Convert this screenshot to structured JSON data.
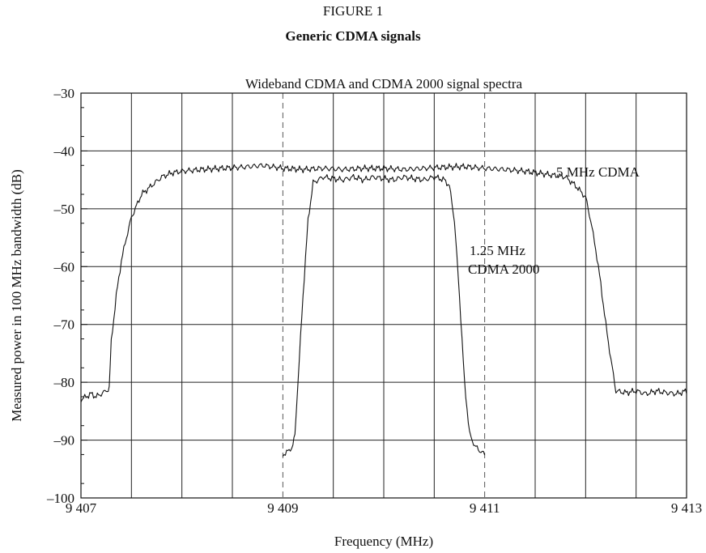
{
  "figure_label": "FIGURE 1",
  "figure_title": "Generic CDMA signals",
  "chart_data": {
    "type": "line",
    "title": "Wideband CDMA and CDMA 2000 signal spectra",
    "xlabel": "Frequency (MHz)",
    "ylabel": "Measured power in 100 MHz bandwidth (dB)",
    "xlim": [
      9407,
      9413
    ],
    "ylim": [
      -100,
      -30
    ],
    "xticks": [
      9407,
      9409,
      9411,
      9413
    ],
    "xtick_labels": [
      "9 407",
      "9 409",
      "9 411",
      "9 413"
    ],
    "yticks": [
      -30,
      -40,
      -50,
      -60,
      -70,
      -80,
      -90,
      -100
    ],
    "ytick_labels": [
      "–30",
      "–40",
      "–50",
      "–60",
      "–70",
      "–80",
      "–90",
      "–100"
    ],
    "x_grid_step": 0.5,
    "grid": true,
    "dashed_vlines": [
      9409,
      9411
    ],
    "series": [
      {
        "name": "5 MHz CDMA",
        "values_x": [
          9407.0,
          9407.05,
          9407.1,
          9407.15,
          9407.2,
          9407.25,
          9407.28,
          9407.3,
          9407.35,
          9407.4,
          9407.45,
          9407.5,
          9407.55,
          9407.6,
          9407.7,
          9407.8,
          9407.9,
          9408.0,
          9408.2,
          9408.4,
          9408.6,
          9408.8,
          9409.0,
          9409.2,
          9409.4,
          9409.6,
          9409.8,
          9410.0,
          9410.2,
          9410.4,
          9410.6,
          9410.8,
          9411.0,
          9411.2,
          9411.4,
          9411.6,
          9411.8,
          9411.9,
          9412.0,
          9412.05,
          9412.1,
          9412.15,
          9412.2,
          9412.25,
          9412.3,
          9412.4,
          9412.5,
          9412.6,
          9412.7,
          9412.8,
          9412.9,
          9413.0
        ],
        "values_y": [
          -83.0,
          -82.5,
          -82.0,
          -82.5,
          -82.0,
          -81.5,
          -81.0,
          -73.0,
          -65.0,
          -59.0,
          -55.0,
          -51.5,
          -49.5,
          -47.5,
          -46.0,
          -44.5,
          -43.8,
          -43.5,
          -43.2,
          -43.0,
          -42.8,
          -42.5,
          -43.0,
          -43.2,
          -43.0,
          -43.2,
          -43.0,
          -43.0,
          -43.2,
          -43.0,
          -42.8,
          -42.7,
          -43.0,
          -43.2,
          -43.5,
          -44.0,
          -44.5,
          -46.0,
          -48.0,
          -52.0,
          -57.0,
          -63.0,
          -70.0,
          -76.0,
          -81.5,
          -81.8,
          -81.5,
          -82.0,
          -81.5,
          -81.8,
          -82.0,
          -81.5
        ]
      },
      {
        "name": "1.25 MHz CDMA 2000",
        "values_x": [
          9409.0,
          9409.05,
          9409.1,
          9409.12,
          9409.15,
          9409.2,
          9409.25,
          9409.3,
          9409.35,
          9409.4,
          9409.5,
          9409.6,
          9409.7,
          9409.8,
          9409.9,
          9410.0,
          9410.1,
          9410.2,
          9410.3,
          9410.4,
          9410.5,
          9410.6,
          9410.65,
          9410.7,
          9410.75,
          9410.8,
          9410.85,
          9410.88,
          9410.9,
          9410.95,
          9411.0
        ],
        "values_y": [
          -92.5,
          -92.0,
          -91.0,
          -89.0,
          -80.0,
          -65.0,
          -52.0,
          -45.5,
          -45.0,
          -44.5,
          -44.8,
          -45.0,
          -44.5,
          -45.0,
          -44.5,
          -44.8,
          -45.0,
          -44.5,
          -44.8,
          -45.0,
          -44.5,
          -45.0,
          -46.0,
          -52.0,
          -65.0,
          -80.0,
          -89.0,
          -90.0,
          -91.0,
          -91.8,
          -92.5
        ]
      }
    ],
    "annotations": {
      "series_1_label": "5 MHz CDMA",
      "series_2_label_line1": "1.25 MHz",
      "series_2_label_line2": "CDMA 2000"
    }
  }
}
